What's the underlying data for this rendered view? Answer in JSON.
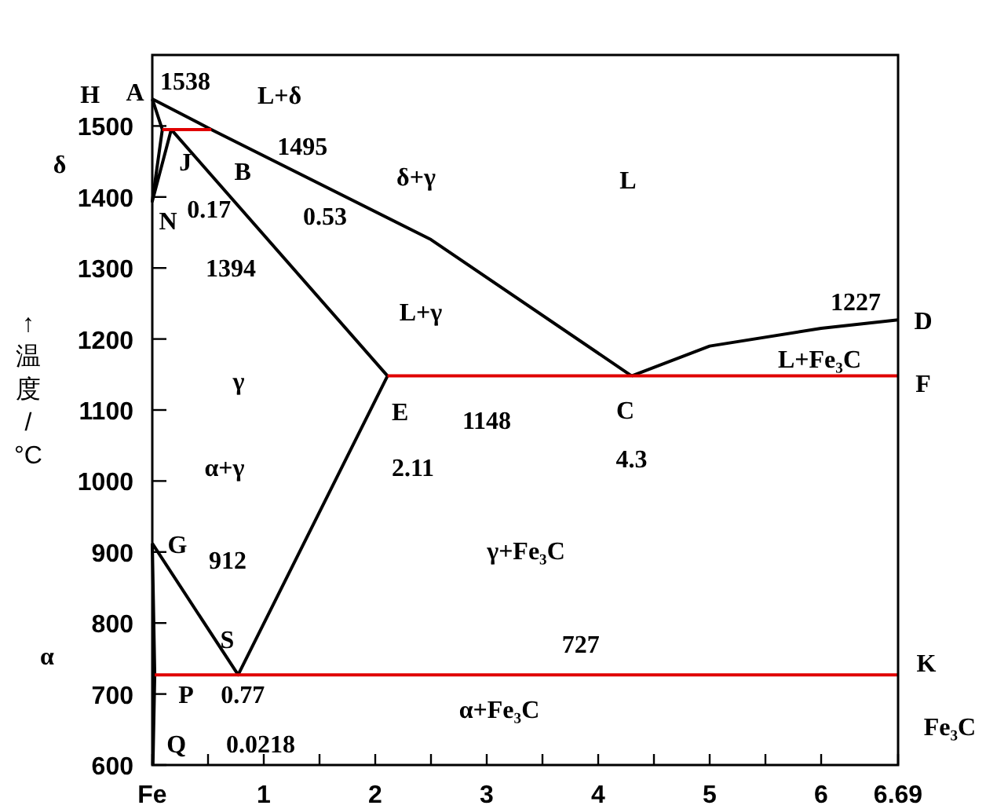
{
  "chart_data": {
    "type": "line",
    "ylabel": "↑温度/°C",
    "xlim": [
      0,
      6.69
    ],
    "ylim": [
      600,
      1600
    ],
    "xticks": [
      {
        "value": 0,
        "label": "Fe"
      },
      {
        "value": 0.5,
        "label": null
      },
      1,
      {
        "value": 1.5,
        "label": null
      },
      2,
      {
        "value": 2.5,
        "label": null
      },
      3,
      {
        "value": 3.5,
        "label": null
      },
      4,
      {
        "value": 4.5,
        "label": null
      },
      5,
      {
        "value": 5.5,
        "label": null
      },
      6,
      6.69
    ],
    "yticks": [
      600,
      700,
      800,
      900,
      1000,
      1100,
      1200,
      1300,
      1400,
      1500
    ],
    "series": [
      {
        "type": "line",
        "color": "#000000",
        "x": [
          0,
          0.53,
          2.5,
          4.3
        ],
        "values": [
          1538,
          1495,
          1340,
          1148
        ]
      },
      {
        "type": "line",
        "color": "#000000",
        "x": [
          4.3,
          5,
          6,
          6.69
        ],
        "values": [
          1148,
          1190,
          1215,
          1227
        ]
      },
      {
        "type": "line",
        "color": "#000000",
        "x": [
          0,
          0.09,
          0,
          0.17,
          2.11,
          0.77,
          0
        ],
        "values": [
          1538,
          1495,
          1394,
          1495,
          1148,
          727,
          912
        ]
      },
      {
        "type": "line",
        "color": "#000000",
        "x": [
          0,
          0.0218,
          0.0057
        ],
        "values": [
          912,
          727,
          600
        ]
      },
      {
        "type": "line",
        "color": "#e00000",
        "x": [
          0.09,
          0.53
        ],
        "values": [
          1495,
          1495
        ]
      },
      {
        "type": "line",
        "color": "#e00000",
        "x": [
          2.11,
          6.69
        ],
        "values": [
          1148,
          1148
        ]
      },
      {
        "type": "line",
        "color": "#e00000",
        "x": [
          0.0218,
          6.69
        ],
        "values": [
          727,
          727
        ]
      }
    ],
    "annotations": [
      {
        "text": "A",
        "x": 0,
        "y": 1538
      },
      {
        "text": "1538",
        "x": 0,
        "y": 1538
      },
      {
        "text": "H",
        "x": 0.09,
        "y": 1495
      },
      "L+δ",
      {
        "text": "B",
        "x": 0.53,
        "y": 1495
      },
      {
        "text": "1495",
        "x": 0.53,
        "y": 1495
      },
      "δ+γ",
      "δ",
      {
        "text": "J",
        "x": 0.17,
        "y": 1495
      },
      "L",
      {
        "text": "N",
        "x": 0,
        "y": 1394
      },
      {
        "text": "0.17",
        "x": 0.17,
        "y": 1495
      },
      "0.53",
      "1394",
      "L+γ",
      {
        "text": "1227",
        "x": 6.69,
        "y": 1227
      },
      {
        "text": "D",
        "x": 6.69,
        "y": 1227
      },
      "L+Fe₃C",
      {
        "text": "F",
        "x": 6.69,
        "y": 1148
      },
      "γ",
      {
        "text": "E",
        "x": 2.11,
        "y": 1148
      },
      "1148",
      {
        "text": "C",
        "x": 4.3,
        "y": 1148
      },
      "2.11",
      {
        "text": "4.3",
        "x": 4.3,
        "y": 1148
      },
      "α+γ",
      {
        "text": "G",
        "x": 0,
        "y": 912
      },
      {
        "text": "912",
        "x": 0,
        "y": 912
      },
      "γ+Fe₃C",
      {
        "text": "S",
        "x": 0.77,
        "y": 727
      },
      {
        "text": "727",
        "x": 3.9,
        "y": 727
      },
      {
        "text": "K",
        "x": 6.69,
        "y": 727
      },
      "α",
      {
        "text": "P",
        "x": 0.0218,
        "y": 727
      },
      {
        "text": "0.77",
        "x": 0.77,
        "y": 727
      },
      {
        "text": "Q",
        "x": 0.0057,
        "y": 600
      },
      "0.0218",
      "α+Fe₃C",
      "Fe₃C"
    ]
  }
}
